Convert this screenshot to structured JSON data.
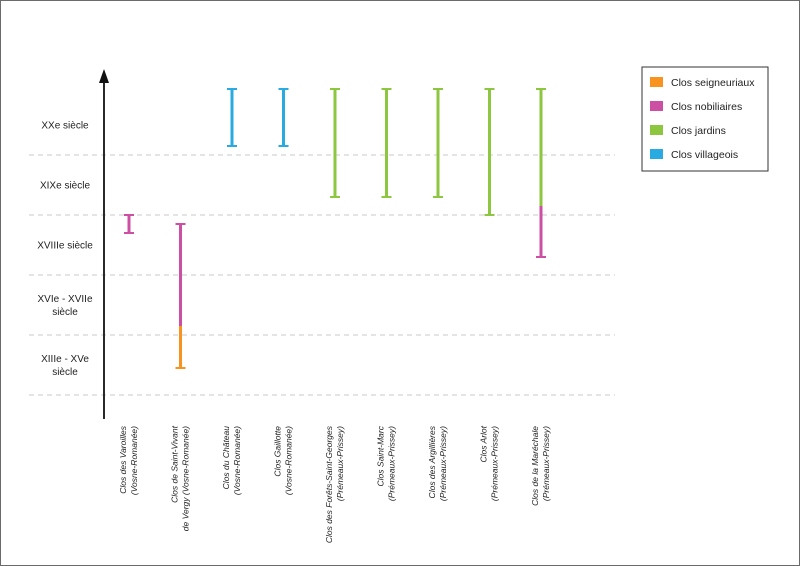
{
  "chart_data": {
    "type": "range-bar",
    "title": "",
    "xlabel": "",
    "ylabel": "",
    "periods": [
      [
        "XIIIe - XVe",
        "siècle"
      ],
      [
        "XVIe - XVIIe",
        "siècle"
      ],
      [
        "XVIIIe siècle"
      ],
      [
        "XIXe siècle"
      ],
      [
        "XXe siècle"
      ]
    ],
    "ylim": [
      0,
      5
    ],
    "grid": "dashed",
    "legend_position": "top-right",
    "legend": [
      {
        "key": "seigneuriaux",
        "label": "Clos seigneuriaux",
        "color": "#f7931e"
      },
      {
        "key": "nobiliaires",
        "label": "Clos nobiliaires",
        "color": "#cc4fa3"
      },
      {
        "key": "jardins",
        "label": "Clos jardins",
        "color": "#8dc63f"
      },
      {
        "key": "villageois",
        "label": "Clos villageois",
        "color": "#29abe2"
      }
    ],
    "categories": [
      {
        "lines": [
          "Clos des Varoilles",
          "(Vosne-Romanée)"
        ],
        "segments": [
          {
            "type": "nobiliaires",
            "from": 2.7,
            "to": 3.0
          }
        ]
      },
      {
        "lines": [
          "Clos de Saint-Vivant",
          "de Vergy (Vosne-Romanée)"
        ],
        "segments": [
          {
            "type": "seigneuriaux",
            "from": 0.45,
            "to": 1.15
          },
          {
            "type": "nobiliaires",
            "from": 1.15,
            "to": 2.85
          }
        ]
      },
      {
        "lines": [
          "Clos du Château",
          "(Vosne-Romanée)"
        ],
        "segments": [
          {
            "type": "villageois",
            "from": 4.15,
            "to": 5.1
          }
        ]
      },
      {
        "lines": [
          "Clos Gaillotte",
          "(Vosne-Romanée)"
        ],
        "segments": [
          {
            "type": "villageois",
            "from": 4.15,
            "to": 5.1
          }
        ]
      },
      {
        "lines": [
          "Clos des Forêts-Saint-Georges",
          "(Prémeaux-Prissey)"
        ],
        "segments": [
          {
            "type": "jardins",
            "from": 3.3,
            "to": 5.1
          }
        ]
      },
      {
        "lines": [
          "Clos Saint-Marc",
          "(Prémeaux-Prissey)"
        ],
        "segments": [
          {
            "type": "jardins",
            "from": 3.3,
            "to": 5.1
          }
        ]
      },
      {
        "lines": [
          "Clos des Argillières",
          "(Prémeaux-Prissey)"
        ],
        "segments": [
          {
            "type": "jardins",
            "from": 3.3,
            "to": 5.1
          }
        ]
      },
      {
        "lines": [
          "Clos Arlot",
          "(Prémeaux-Prissey)"
        ],
        "segments": [
          {
            "type": "jardins",
            "from": 3.0,
            "to": 5.1
          }
        ]
      },
      {
        "lines": [
          "Clos de la Maréchale",
          "(Prémeaux-Prissey)"
        ],
        "segments": [
          {
            "type": "nobiliaires",
            "from": 2.3,
            "to": 3.15
          },
          {
            "type": "jardins",
            "from": 3.15,
            "to": 5.1
          }
        ]
      }
    ]
  }
}
